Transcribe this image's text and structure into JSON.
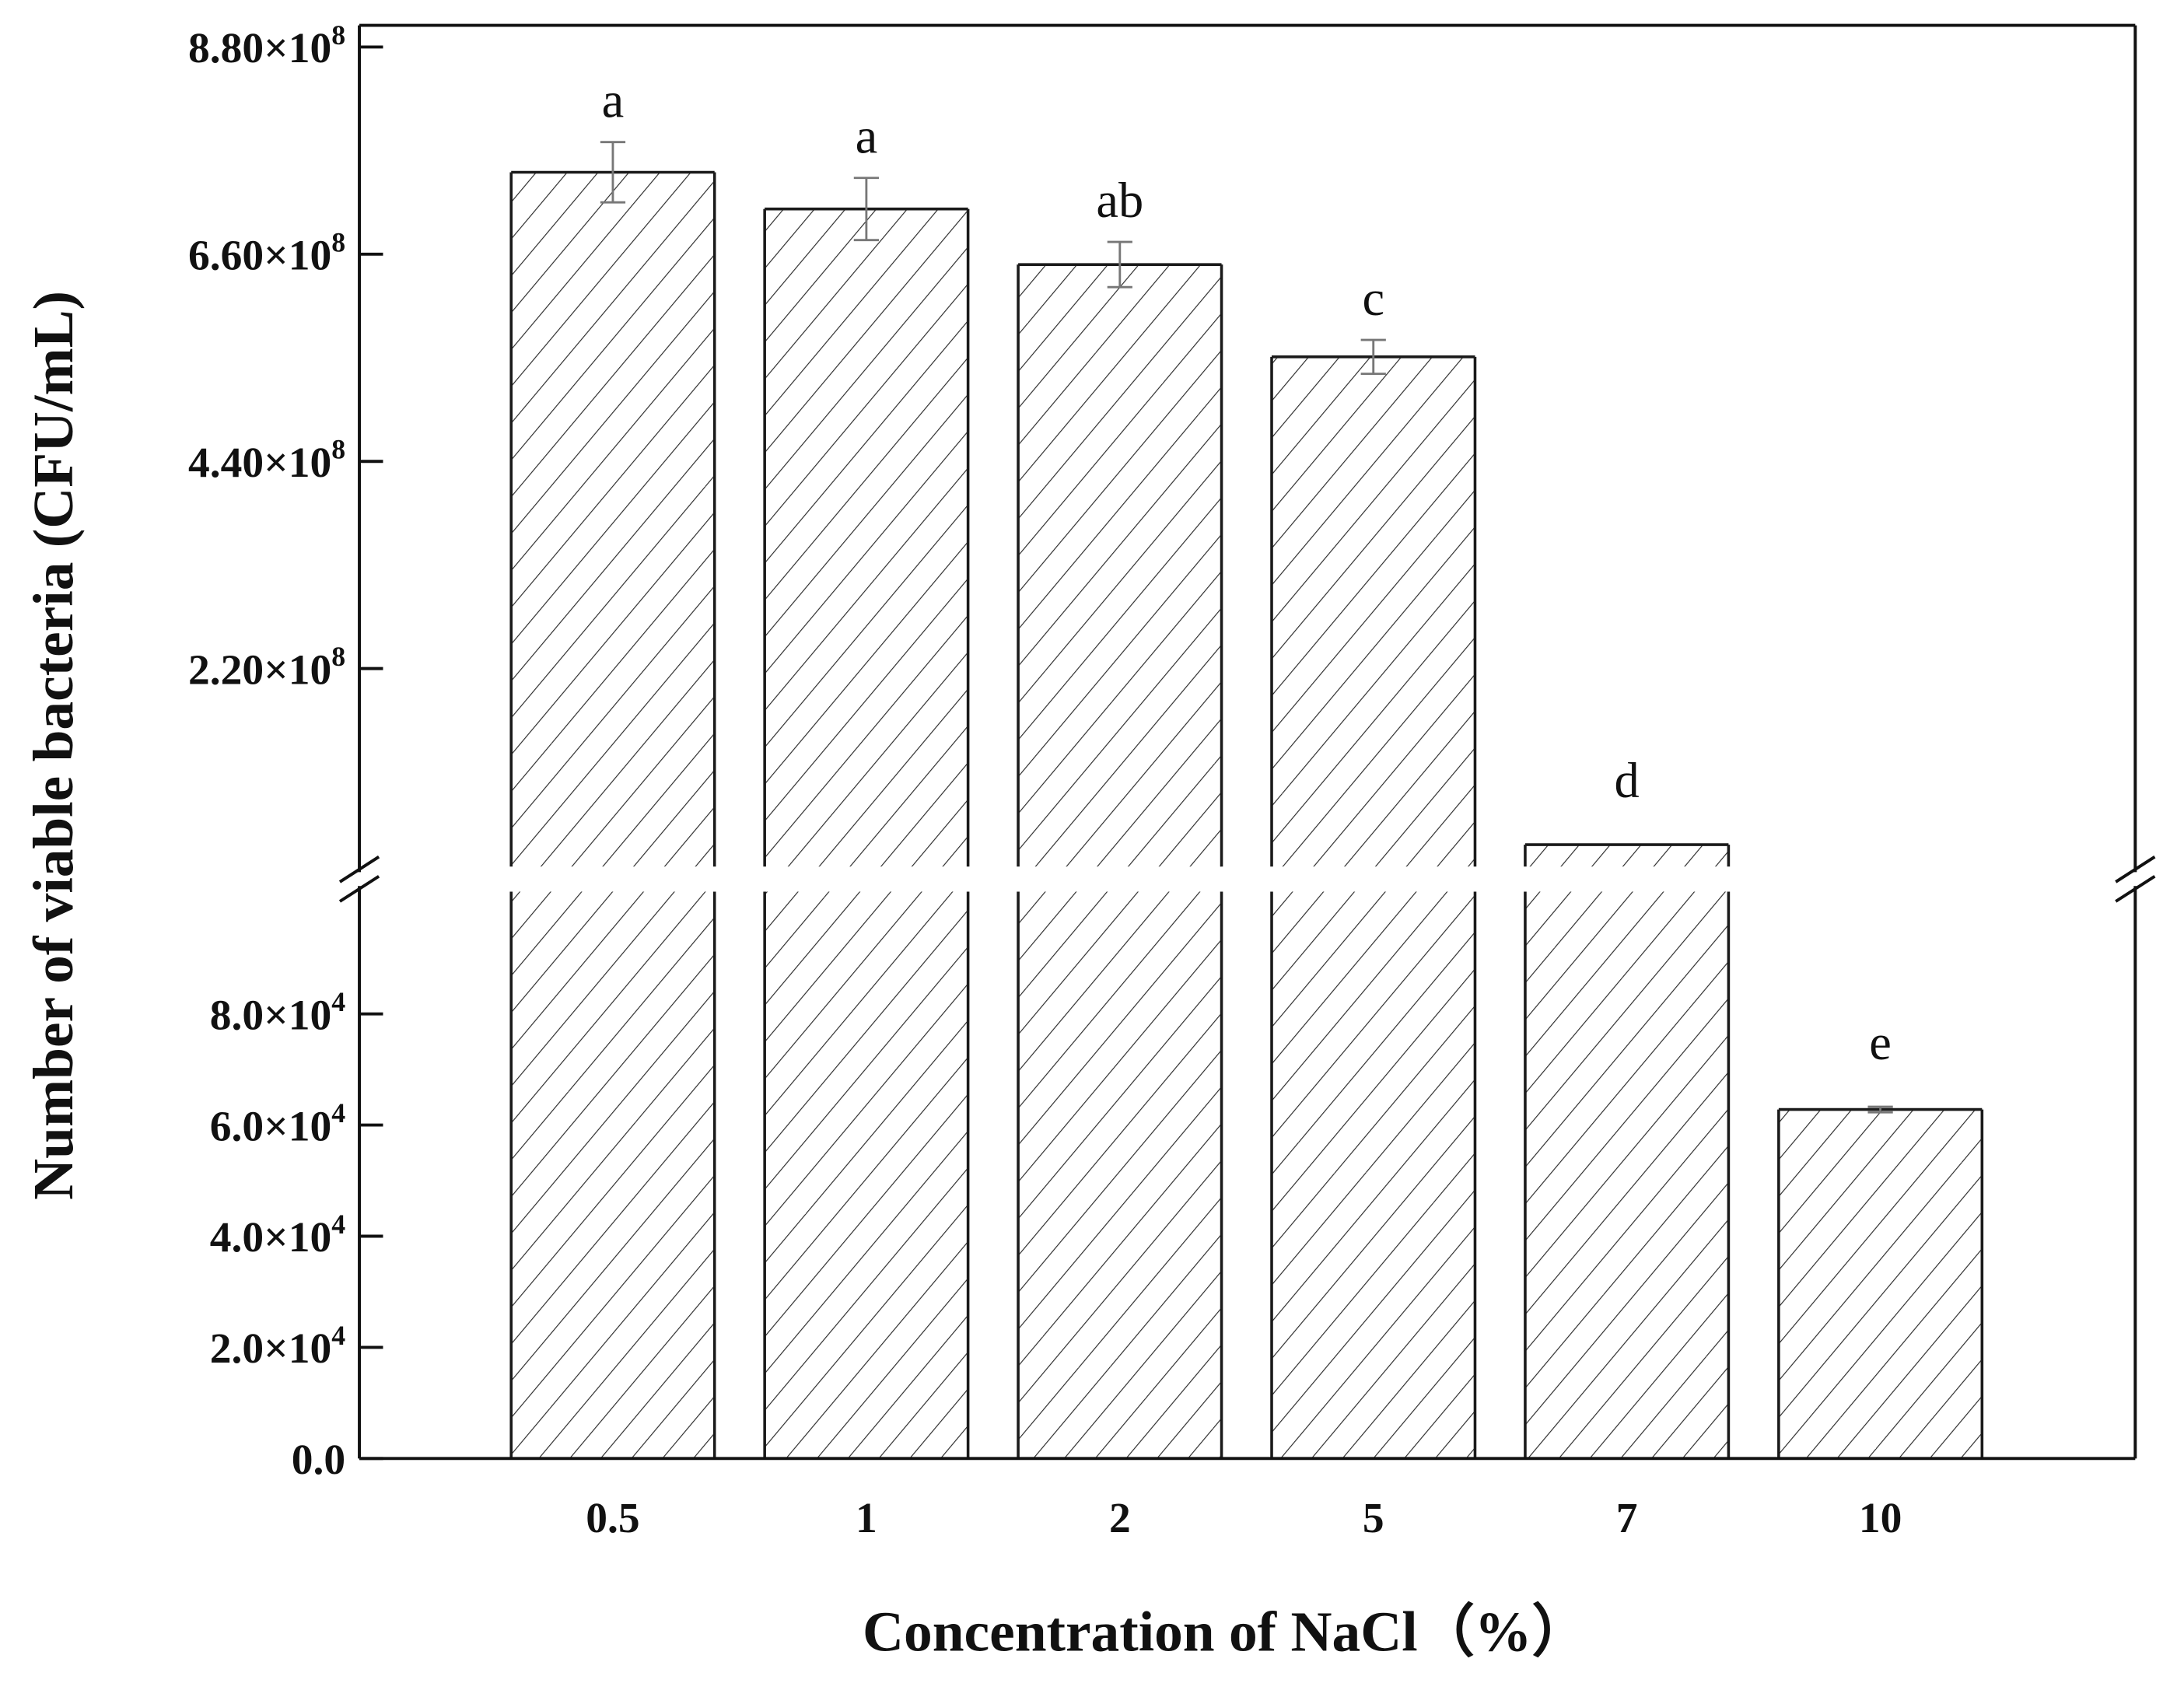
{
  "chart_data": {
    "type": "bar",
    "xlabel": "Concentration of NaCl（%）",
    "ylabel": "Number of viable bacteria (CFU/mL)",
    "categories": [
      "0.5",
      "1",
      "2",
      "5",
      "7",
      "10"
    ],
    "values": [
      747000000,
      708000000,
      649000000,
      551000000,
      33000000,
      62800
    ],
    "errors": [
      32000000,
      33000000,
      24000000,
      18000000,
      0,
      500
    ],
    "significance_letters": [
      "a",
      "a",
      "ab",
      "c",
      "d",
      "e"
    ],
    "broken_axis": true,
    "y_segments": [
      {
        "name": "lower",
        "ylim": [
          0,
          102000
        ],
        "ticks": [
          0,
          20000,
          40000,
          60000,
          80000
        ],
        "tick_labels": [
          {
            "base": "0.0",
            "exp": ""
          },
          {
            "base": "2.0×10",
            "exp": "4"
          },
          {
            "base": "4.0×10",
            "exp": "4"
          },
          {
            "base": "6.0×10",
            "exp": "4"
          },
          {
            "base": "8.0×10",
            "exp": "4"
          }
        ]
      },
      {
        "name": "upper",
        "ylim": [
          0,
          903000000
        ],
        "ticks": [
          220000000,
          440000000,
          660000000,
          880000000
        ],
        "tick_labels": [
          {
            "base": "2.20×10",
            "exp": "8"
          },
          {
            "base": "4.40×10",
            "exp": "8"
          },
          {
            "base": "6.60×10",
            "exp": "8"
          },
          {
            "base": "8.80×10",
            "exp": "8"
          }
        ]
      }
    ],
    "bar_fill": "hatched diagonal",
    "colors": {
      "bar_edge": "#1a1a1a",
      "hatch": "#2a2a2a",
      "error_bar": "#777777",
      "axis": "#111111"
    },
    "grid": false,
    "legend": "none"
  }
}
